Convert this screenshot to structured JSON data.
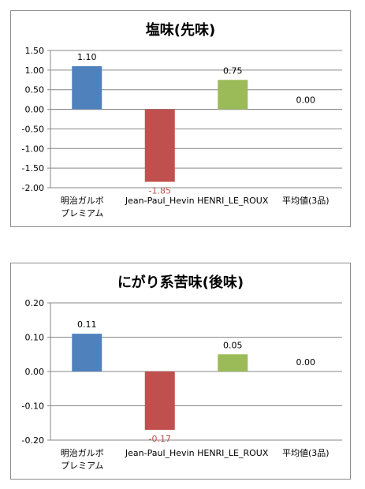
{
  "chart_data": [
    {
      "type": "bar",
      "title": "塩味(先味)",
      "categories": [
        [
          "明治ガルボ",
          "プレミアム"
        ],
        [
          "Jean-Paul_Hevin"
        ],
        [
          "HENRI_LE_ROUX"
        ],
        [
          "平均値(3品)"
        ]
      ],
      "values": [
        1.1,
        -1.85,
        0.75,
        0.0
      ],
      "value_labels": [
        "1.10",
        "-1.85",
        "0.75",
        "0.00"
      ],
      "ylim": [
        -2.0,
        1.5
      ],
      "yticks": [
        "1.50",
        "1.00",
        "0.50",
        "0.00",
        "-0.50",
        "-1.00",
        "-1.50",
        "-2.00"
      ],
      "ytick_values": [
        1.5,
        1.0,
        0.5,
        0.0,
        -0.5,
        -1.0,
        -1.5,
        -2.0
      ],
      "grid": true,
      "legend": "none"
    },
    {
      "type": "bar",
      "title": "にがり系苦味(後味)",
      "categories": [
        [
          "明治ガルボ",
          "プレミアム"
        ],
        [
          "Jean-Paul_Hevin"
        ],
        [
          "HENRI_LE_ROUX"
        ],
        [
          "平均値(3品)"
        ]
      ],
      "values": [
        0.11,
        -0.17,
        0.05,
        0.0
      ],
      "value_labels": [
        "0.11",
        "-0.17",
        "0.05",
        "0.00"
      ],
      "ylim": [
        -0.2,
        0.2
      ],
      "yticks": [
        "0.20",
        "0.10",
        "0.00",
        "-0.10",
        "-0.20"
      ],
      "ytick_values": [
        0.2,
        0.1,
        0.0,
        -0.1,
        -0.2
      ],
      "grid": true,
      "legend": "none"
    }
  ],
  "colors": {
    "bars": [
      "#4f81bd",
      "#c0504d",
      "#9bbb59",
      "#8064a2"
    ],
    "negative_text": "#c0504d",
    "positive_text": "#000000",
    "grid": "#878787",
    "axis": "#878787"
  }
}
